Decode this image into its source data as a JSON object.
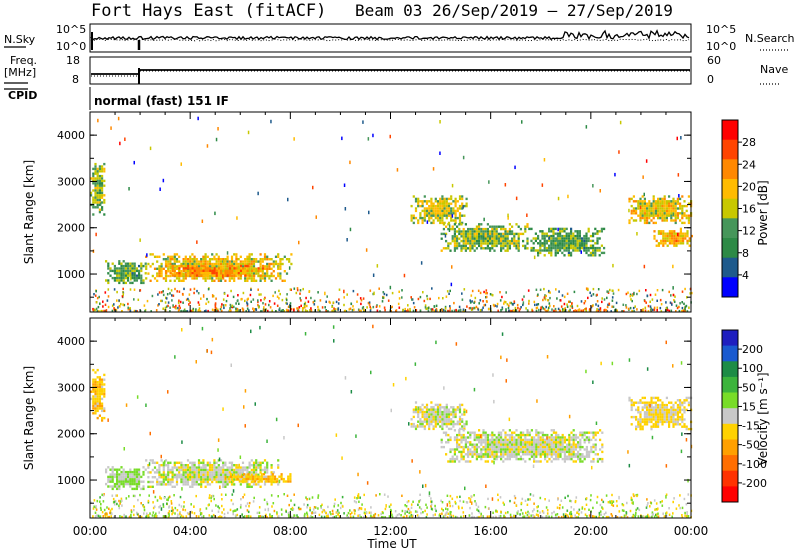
{
  "header": {
    "title": "Fort Hays East (fitACF)",
    "beam_info": "Beam 03  26/Sep/2019 – 27/Sep/2019"
  },
  "top_panel_labels": {
    "nsky": "N.Sky",
    "nsearch": "N.Search",
    "freq": "Freq.",
    "freq_unit": "[MHz]",
    "nave": "Nave",
    "cpid": "CPID",
    "cpid_value": "normal (fast) 151 IF",
    "nsky_ticks": [
      "10^5",
      "10^0"
    ],
    "nsearch_ticks": [
      "10^5",
      "10^0"
    ],
    "freq_ticks": [
      "18",
      "8"
    ],
    "nave_ticks": [
      "60",
      "0"
    ]
  },
  "colorbars": {
    "power": {
      "label": "Power [dB]",
      "ticks": [
        "28",
        "24",
        "20",
        "16",
        "12",
        "8",
        "4"
      ],
      "colors": [
        "#ff0000",
        "#ff4400",
        "#ff8800",
        "#ffbb00",
        "#c8c800",
        "#46965a",
        "#2d8a46",
        "#1e5a8c",
        "#0000ff"
      ]
    },
    "velocity": {
      "label": "Velocity [m s⁻¹]",
      "ticks": [
        "200",
        "100",
        "50",
        "15",
        "-15",
        "-50",
        "-100",
        "-200"
      ],
      "colors": [
        "#1f1fbf",
        "#1a5ad0",
        "#1d8c46",
        "#3cb43c",
        "#78dc28",
        "#c8c8c8",
        "#ffd200",
        "#ffa000",
        "#ff6e00",
        "#ff3200",
        "#ff0000"
      ]
    }
  },
  "chart_data": [
    {
      "type": "heatmap",
      "name": "Power panel",
      "ylabel": "Slant Range [km]",
      "yticks": [
        "4000",
        "3000",
        "2000",
        "1000"
      ],
      "ylim": [
        180,
        4500
      ],
      "x_range_hours": [
        0,
        24
      ],
      "regions": [
        {
          "t0": 0.0,
          "t1": 0.6,
          "r0": 2300,
          "r1": 3400,
          "value": 14
        },
        {
          "t0": 0.6,
          "t1": 2.2,
          "r0": 800,
          "r1": 1300,
          "value": 12
        },
        {
          "t0": 2.2,
          "t1": 8.0,
          "r0": 850,
          "r1": 1450,
          "value": 18
        },
        {
          "t0": 3.0,
          "t1": 7.0,
          "r0": 950,
          "r1": 1200,
          "value": 22
        },
        {
          "t0": 12.8,
          "t1": 15.0,
          "r0": 2100,
          "r1": 2700,
          "value": 16
        },
        {
          "t0": 14.0,
          "t1": 17.5,
          "r0": 1500,
          "r1": 2100,
          "value": 14
        },
        {
          "t0": 17.5,
          "t1": 20.5,
          "r0": 1400,
          "r1": 2000,
          "value": 12
        },
        {
          "t0": 21.5,
          "t1": 24.0,
          "r0": 2100,
          "r1": 2700,
          "value": 18
        },
        {
          "t0": 22.5,
          "t1": 24.0,
          "r0": 1600,
          "r1": 2000,
          "value": 20
        }
      ]
    },
    {
      "type": "heatmap",
      "name": "Velocity panel",
      "ylabel": "Slant Range [km]",
      "yticks": [
        "4000",
        "3000",
        "2000",
        "1000"
      ],
      "ylim": [
        180,
        4500
      ],
      "xlabel": "Time UT",
      "xticks": [
        "00:00",
        "04:00",
        "08:00",
        "12:00",
        "16:00",
        "20:00",
        "00:00"
      ],
      "x_range_hours": [
        0,
        24
      ],
      "regions": [
        {
          "t0": 0.0,
          "t1": 0.6,
          "r0": 2300,
          "r1": 3400,
          "value": -40
        },
        {
          "t0": 0.6,
          "t1": 2.2,
          "r0": 800,
          "r1": 1300,
          "value": 20
        },
        {
          "t0": 2.2,
          "t1": 7.5,
          "r0": 850,
          "r1": 1450,
          "value": 0
        },
        {
          "t0": 5.5,
          "t1": 8.0,
          "r0": 950,
          "r1": 1150,
          "value": -40
        },
        {
          "t0": 12.8,
          "t1": 15.0,
          "r0": 2100,
          "r1": 2700,
          "value": 0
        },
        {
          "t0": 14.0,
          "t1": 20.5,
          "r0": 1400,
          "r1": 2100,
          "value": 0
        },
        {
          "t0": 21.5,
          "t1": 24.0,
          "r0": 2100,
          "r1": 2800,
          "value": -20
        }
      ]
    }
  ]
}
